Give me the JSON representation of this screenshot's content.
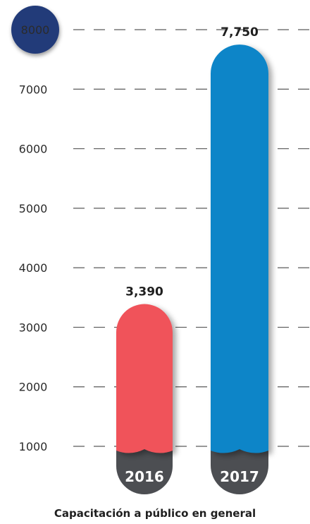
{
  "chart_data": {
    "type": "bar",
    "title": "Capacitación a público en general",
    "categories": [
      "2016",
      "2017"
    ],
    "values": [
      3390,
      7750
    ],
    "value_labels": [
      "3,390",
      "7,750"
    ],
    "ylim": [
      1000,
      8000
    ],
    "yticks": [
      "1000",
      "2000",
      "3000",
      "4000",
      "5000",
      "6000",
      "7000",
      "8000"
    ],
    "grid": "dashed",
    "xlabel": "",
    "ylabel": ""
  },
  "colors": {
    "bar_2016": "#f0525a",
    "bar_2017": "#0a85c8",
    "base": "#4c4e52",
    "top_tick_badge": "#233a79",
    "grid": "#5a5a5a"
  }
}
